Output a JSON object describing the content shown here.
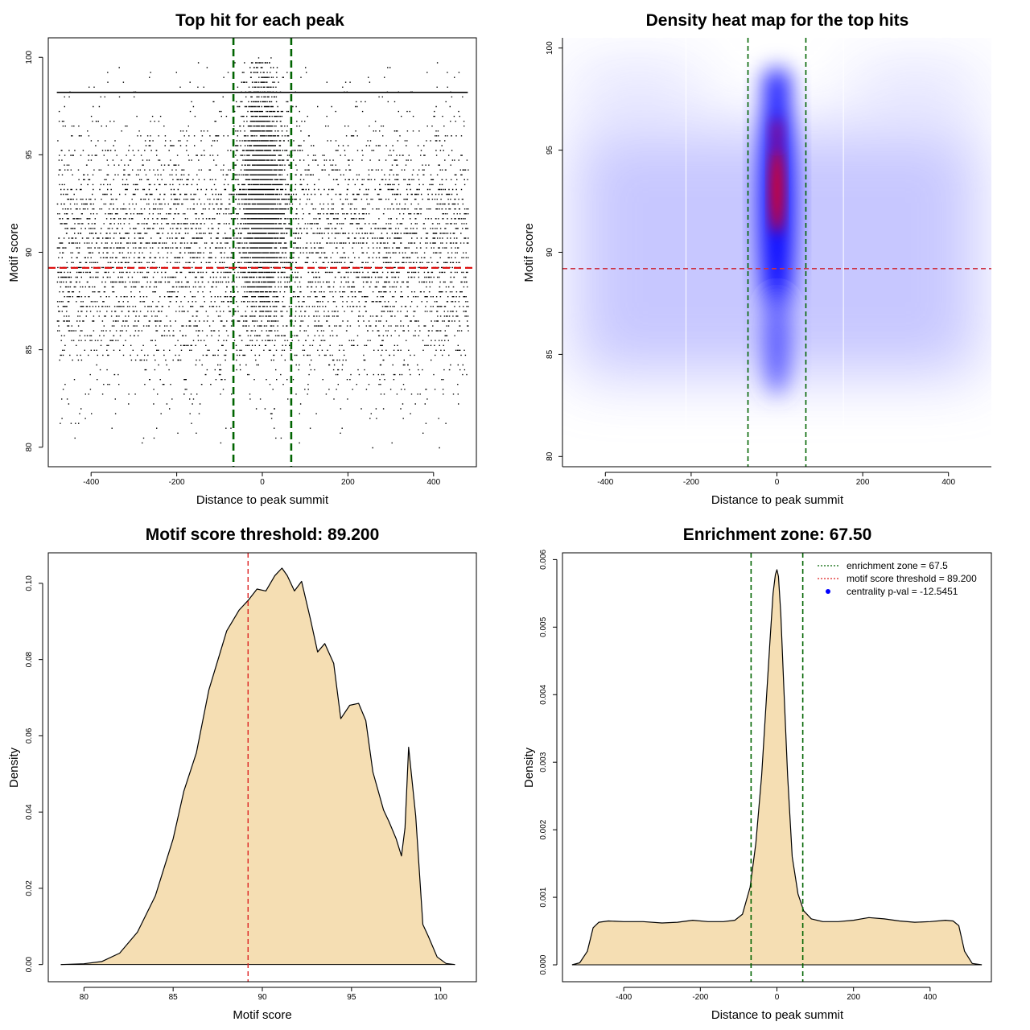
{
  "chart_data": [
    {
      "id": "scatter",
      "type": "scatter",
      "title": "Top hit for each peak",
      "xlabel": "Distance to peak summit",
      "ylabel": "Motif score",
      "xlim": [
        -500,
        500
      ],
      "ylim": [
        79,
        101
      ],
      "xticks": [
        -400,
        -200,
        0,
        200,
        400
      ],
      "yticks": [
        80,
        85,
        90,
        95,
        100
      ],
      "vlines": [
        -67.5,
        67.5
      ],
      "hline": 89.2,
      "vline_color": "#006400",
      "hline_color": "#dd1111",
      "point_color": "#000000",
      "horizontal_band_score": 98.2,
      "description_points": "thousands of points; dense uniform background over -480..480 and scores 80..100, with a dense central column within about +/-60 around distance 0 concentrated at scores 86..99.5"
    },
    {
      "id": "heatmap",
      "type": "heatmap",
      "title": "Density heat map for the top hits",
      "xlabel": "Distance to peak summit",
      "ylabel": "Motif score",
      "xlim": [
        -500,
        500
      ],
      "ylim": [
        79.5,
        100.5
      ],
      "xticks": [
        -400,
        -200,
        0,
        200,
        400
      ],
      "yticks": [
        80,
        85,
        90,
        95,
        100
      ],
      "vlines": [
        -67.5,
        67.5
      ],
      "hline": 89.2,
      "vline_color": "#006400",
      "hline_color": "#cc3344",
      "colors": [
        "#ffffff",
        "#0000ff",
        "#ff0000"
      ],
      "hotspots": [
        {
          "x": 0,
          "y": 98.2,
          "level": "high"
        },
        {
          "x": 0,
          "y": 93.8,
          "level": "peak"
        },
        {
          "x": 0,
          "y": 92.4,
          "level": "peak"
        },
        {
          "x": 0,
          "y": 89.5,
          "level": "high"
        },
        {
          "x": 0,
          "y": 86.5,
          "level": "medium"
        }
      ]
    },
    {
      "id": "score-density",
      "type": "area",
      "title": "Motif score threshold: 89.200",
      "xlabel": "Motif score",
      "ylabel": "Density",
      "xlim": [
        78,
        102
      ],
      "ylim": [
        -0.0045,
        0.108
      ],
      "xticks": [
        80,
        85,
        90,
        95,
        100
      ],
      "yticks": [
        0.0,
        0.02,
        0.04,
        0.06,
        0.08,
        0.1
      ],
      "ytick_labels": [
        "0.00",
        "0.02",
        "0.04",
        "0.06",
        "0.08",
        "0.10"
      ],
      "vline": 89.2,
      "vline_color": "#dd2222",
      "fill": "#f5deb3",
      "x": [
        78.7,
        80,
        81,
        82,
        83,
        84,
        85,
        85.6,
        86.3,
        87,
        88,
        88.7,
        89.2,
        89.7,
        90.2,
        90.7,
        91.1,
        91.4,
        91.8,
        92.2,
        92.7,
        93.1,
        93.5,
        94,
        94.4,
        94.9,
        95.4,
        95.8,
        96.2,
        96.8,
        97.1,
        97.5,
        97.8,
        98,
        98.2,
        98.6,
        99,
        99.3,
        99.8,
        100.3,
        100.8
      ],
      "y": [
        0.0,
        0.0002,
        0.0008,
        0.003,
        0.0085,
        0.018,
        0.033,
        0.0455,
        0.0555,
        0.072,
        0.0875,
        0.093,
        0.0955,
        0.0985,
        0.098,
        0.102,
        0.104,
        0.102,
        0.098,
        0.1005,
        0.0905,
        0.082,
        0.0842,
        0.079,
        0.0645,
        0.068,
        0.0685,
        0.064,
        0.0505,
        0.0405,
        0.0375,
        0.033,
        0.0285,
        0.0358,
        0.057,
        0.039,
        0.0105,
        0.0075,
        0.002,
        0.0003,
        0.0
      ]
    },
    {
      "id": "distance-density",
      "type": "area",
      "title": "Enrichment zone: 67.50",
      "xlabel": "Distance to peak summit",
      "ylabel": "Density",
      "xlim": [
        -560,
        560
      ],
      "ylim": [
        -0.00025,
        0.0061
      ],
      "xticks": [
        -400,
        -200,
        0,
        200,
        400
      ],
      "yticks": [
        0.0,
        0.001,
        0.002,
        0.003,
        0.004,
        0.005,
        0.006
      ],
      "ytick_labels": [
        "0.000",
        "0.001",
        "0.002",
        "0.003",
        "0.004",
        "0.005",
        "0.006"
      ],
      "vlines": [
        -67.5,
        67.5
      ],
      "vline_color": "#006400",
      "fill": "#f5deb3",
      "x": [
        -535,
        -515,
        -495,
        -480,
        -465,
        -440,
        -400,
        -350,
        -300,
        -260,
        -220,
        -180,
        -140,
        -110,
        -90,
        -70,
        -55,
        -40,
        -28,
        -18,
        -10,
        -4,
        0,
        4,
        10,
        18,
        28,
        40,
        55,
        70,
        90,
        120,
        160,
        200,
        240,
        280,
        320,
        360,
        400,
        440,
        460,
        475,
        490,
        510,
        535
      ],
      "y": [
        0.0,
        3e-05,
        0.0002,
        0.00055,
        0.00063,
        0.00065,
        0.00064,
        0.00064,
        0.00062,
        0.00063,
        0.00066,
        0.00064,
        0.00064,
        0.00066,
        0.00075,
        0.00115,
        0.0018,
        0.0028,
        0.0039,
        0.0048,
        0.0055,
        0.00578,
        0.00585,
        0.00575,
        0.0052,
        0.0041,
        0.0028,
        0.0016,
        0.00105,
        0.0008,
        0.00068,
        0.00064,
        0.00064,
        0.00066,
        0.0007,
        0.00068,
        0.00065,
        0.00063,
        0.00064,
        0.00066,
        0.00065,
        0.00058,
        0.0002,
        2e-05,
        0.0
      ],
      "legend": [
        {
          "label": "enrichment zone = 67.5",
          "color": "#006400",
          "style": "dotted-line"
        },
        {
          "label": "motif score threshold = 89.200",
          "color": "#dd2222",
          "style": "dotted-line"
        },
        {
          "label": "centrality p-val = -12.5451",
          "color": "#0000ff",
          "style": "point"
        }
      ],
      "legend_position": "top-right"
    }
  ]
}
